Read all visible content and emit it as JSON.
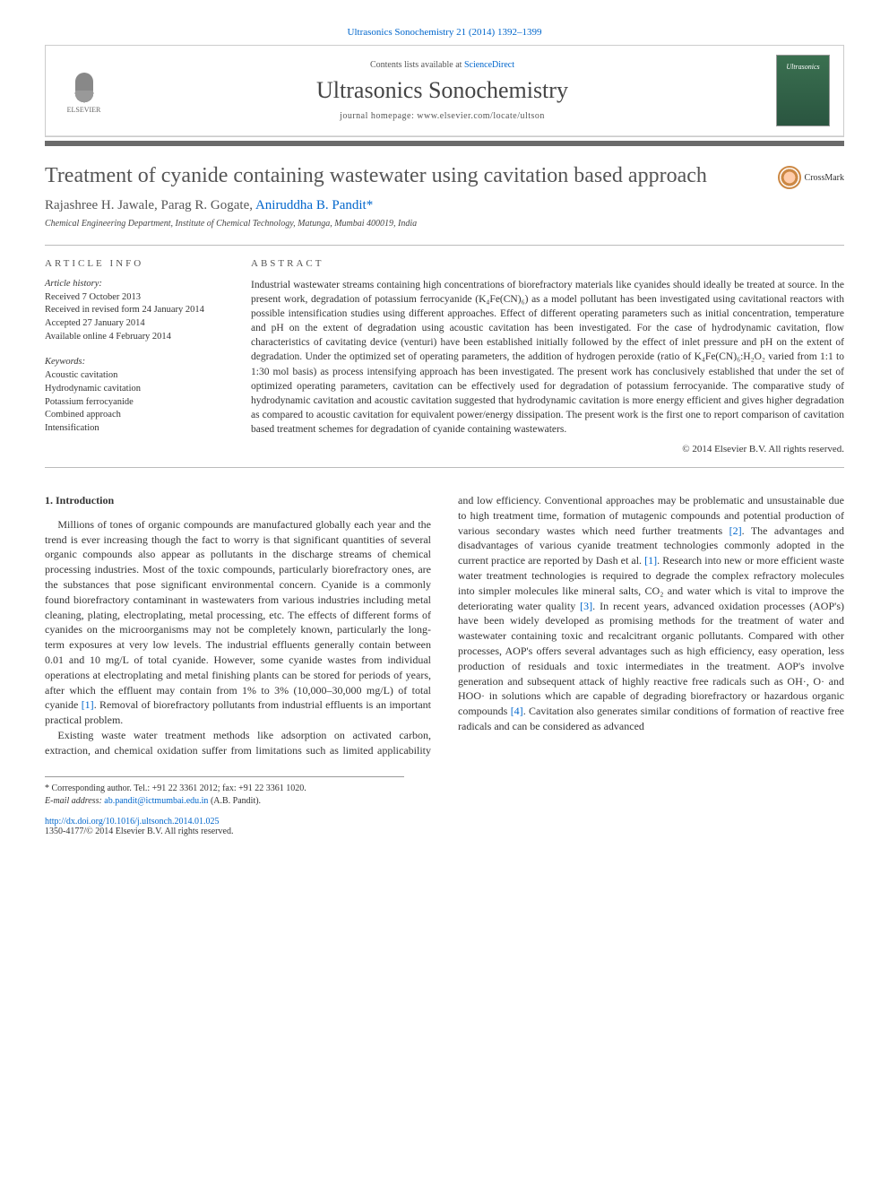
{
  "header": {
    "citation": "Ultrasonics Sonochemistry 21 (2014) 1392–1399",
    "contents_prefix": "Contents lists available at ",
    "contents_link": "ScienceDirect",
    "journal_title": "Ultrasonics Sonochemistry",
    "homepage_prefix": "journal homepage: ",
    "homepage_url": "www.elsevier.com/locate/ultson",
    "publisher_name": "ELSEVIER",
    "cover_text": "Ultrasonics"
  },
  "crossmark": {
    "label": "CrossMark"
  },
  "article": {
    "title": "Treatment of cyanide containing wastewater using cavitation based approach",
    "authors_plain": "Rajashree H. Jawale, Parag R. Gogate, ",
    "author_corresponding": "Aniruddha B. Pandit",
    "corr_marker": "*",
    "affiliation": "Chemical Engineering Department, Institute of Chemical Technology, Matunga, Mumbai 400019, India"
  },
  "info": {
    "label": "article info",
    "history_heading": "Article history:",
    "history": [
      "Received 7 October 2013",
      "Received in revised form 24 January 2014",
      "Accepted 27 January 2014",
      "Available online 4 February 2014"
    ],
    "keywords_heading": "Keywords:",
    "keywords": [
      "Acoustic cavitation",
      "Hydrodynamic cavitation",
      "Potassium ferrocyanide",
      "Combined approach",
      "Intensification"
    ]
  },
  "abstract": {
    "label": "abstract",
    "text": "Industrial wastewater streams containing high concentrations of biorefractory materials like cyanides should ideally be treated at source. In the present work, degradation of potassium ferrocyanide (K₄Fe(CN)₆) as a model pollutant has been investigated using cavitational reactors with possible intensification studies using different approaches. Effect of different operating parameters such as initial concentration, temperature and pH on the extent of degradation using acoustic cavitation has been investigated. For the case of hydrodynamic cavitation, flow characteristics of cavitating device (venturi) have been established initially followed by the effect of inlet pressure and pH on the extent of degradation. Under the optimized set of operating parameters, the addition of hydrogen peroxide (ratio of K₄Fe(CN)₆:H₂O₂ varied from 1:1 to 1:30 mol basis) as process intensifying approach has been investigated. The present work has conclusively established that under the set of optimized operating parameters, cavitation can be effectively used for degradation of potassium ferrocyanide. The comparative study of hydrodynamic cavitation and acoustic cavitation suggested that hydrodynamic cavitation is more energy efficient and gives higher degradation as compared to acoustic cavitation for equivalent power/energy dissipation. The present work is the first one to report comparison of cavitation based treatment schemes for degradation of cyanide containing wastewaters.",
    "copyright": "© 2014 Elsevier B.V. All rights reserved."
  },
  "body": {
    "heading": "1. Introduction",
    "p1": "Millions of tones of organic compounds are manufactured globally each year and the trend is ever increasing though the fact to worry is that significant quantities of several organic compounds also appear as pollutants in the discharge streams of chemical processing industries. Most of the toxic compounds, particularly biorefractory ones, are the substances that pose significant environmental concern. Cyanide is a commonly found biorefractory contaminant in wastewaters from various industries including metal cleaning, plating, electroplating, metal processing, etc. The effects of different forms of cyanides on the microorganisms may not be completely known, particularly the long-term exposures at very low levels. The industrial effluents generally contain between 0.01 and 10 mg/L of total cyanide. However, some cyanide wastes from individual operations at electroplating and metal finishing plants can be stored for periods of years, after which the effluent may contain from 1% to 3% (10,000–30,000 mg/L) of total cyanide ",
    "p1_ref": "[1]",
    "p1_tail": ". Removal of biorefractory pollutants from industrial effluents is an important practical problem.",
    "p2a": "Existing waste water treatment methods like adsorption on activated carbon, extraction, and chemical oxidation suffer from limitations such as limited applicability and low efficiency. Conventional approaches may be problematic and unsustainable due to high treatment time, formation of mutagenic compounds and potential production of various secondary wastes which need further treatments ",
    "p2_ref2": "[2]",
    "p2b": ". The advantages and disadvantages of various cyanide treatment technologies commonly adopted in the current practice are reported by Dash et al. ",
    "p2_ref1": "[1]",
    "p2c": ". Research into new or more efficient waste water treatment technologies is required to degrade the complex refractory molecules into simpler molecules like mineral salts, CO₂ and water which is vital to improve the deteriorating water quality ",
    "p2_ref3": "[3]",
    "p2d": ". In recent years, advanced oxidation processes (AOP's) have been widely developed as promising methods for the treatment of water and wastewater containing toxic and recalcitrant organic pollutants. Compared with other processes, AOP's offers several advantages such as high efficiency, easy operation, less production of residuals and toxic intermediates in the treatment. AOP's involve generation and subsequent attack of highly reactive free radicals such as OH·, O· and HOO· in solutions which are capable of degrading biorefractory or hazardous organic compounds ",
    "p2_ref4": "[4]",
    "p2e": ". Cavitation also generates similar conditions of formation of reactive free radicals and can be considered as advanced"
  },
  "footnote": {
    "corr_label": "* Corresponding author. Tel.: +91 22 3361 2012; fax: +91 22 3361 1020.",
    "email_label": "E-mail address: ",
    "email": "ab.pandit@ictmumbai.edu.in",
    "email_name": " (A.B. Pandit)."
  },
  "doi": {
    "url": "http://dx.doi.org/10.1016/j.ultsonch.2014.01.025",
    "issn_line": "1350-4177/© 2014 Elsevier B.V. All rights reserved."
  }
}
